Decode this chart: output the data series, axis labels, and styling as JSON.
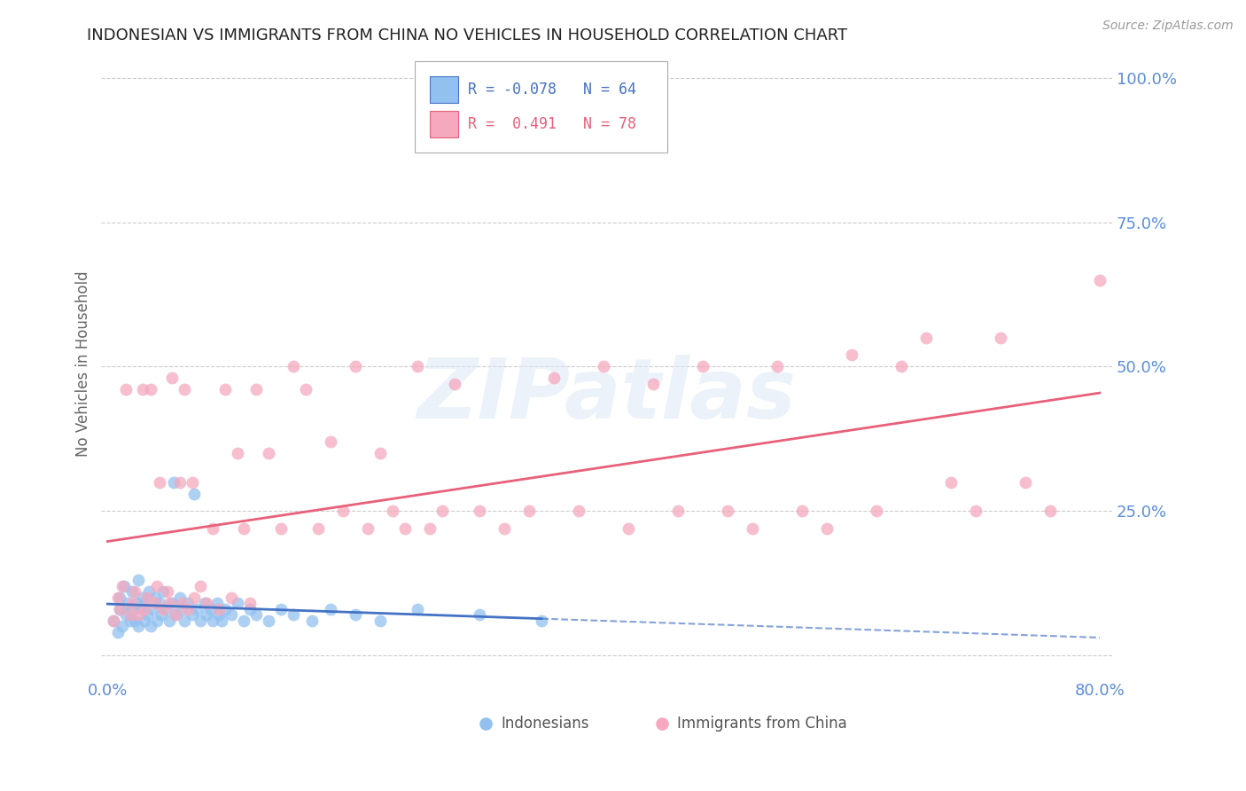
{
  "title": "INDONESIAN VS IMMIGRANTS FROM CHINA NO VEHICLES IN HOUSEHOLD CORRELATION CHART",
  "source": "Source: ZipAtlas.com",
  "ylabel": "No Vehicles in Household",
  "xlim": [
    0.0,
    0.8
  ],
  "ylim": [
    0.0,
    1.0
  ],
  "color_blue": "#92C1F0",
  "color_pink": "#F5A8BE",
  "line_blue": "#4472C4",
  "line_pink": "#E8607A",
  "R_blue": -0.078,
  "N_blue": 64,
  "R_pink": 0.491,
  "N_pink": 78,
  "watermark": "ZIPatlas",
  "background_color": "#FFFFFF",
  "title_fontsize": 13,
  "axis_color": "#5B8DD9",
  "indo_x": [
    0.005,
    0.008,
    0.01,
    0.01,
    0.012,
    0.013,
    0.015,
    0.016,
    0.018,
    0.02,
    0.02,
    0.022,
    0.023,
    0.025,
    0.025,
    0.027,
    0.028,
    0.03,
    0.03,
    0.032,
    0.033,
    0.035,
    0.036,
    0.038,
    0.04,
    0.042,
    0.043,
    0.045,
    0.047,
    0.05,
    0.052,
    0.053,
    0.055,
    0.058,
    0.06,
    0.062,
    0.065,
    0.068,
    0.07,
    0.072,
    0.075,
    0.078,
    0.08,
    0.083,
    0.085,
    0.088,
    0.09,
    0.092,
    0.095,
    0.1,
    0.105,
    0.11,
    0.115,
    0.12,
    0.13,
    0.14,
    0.15,
    0.165,
    0.18,
    0.2,
    0.22,
    0.25,
    0.3,
    0.35
  ],
  "indo_y": [
    0.06,
    0.04,
    0.08,
    0.1,
    0.05,
    0.12,
    0.07,
    0.09,
    0.06,
    0.08,
    0.11,
    0.06,
    0.09,
    0.05,
    0.13,
    0.08,
    0.1,
    0.06,
    0.09,
    0.07,
    0.11,
    0.05,
    0.08,
    0.1,
    0.06,
    0.09,
    0.07,
    0.11,
    0.08,
    0.06,
    0.09,
    0.3,
    0.07,
    0.1,
    0.08,
    0.06,
    0.09,
    0.07,
    0.28,
    0.08,
    0.06,
    0.09,
    0.07,
    0.08,
    0.06,
    0.09,
    0.07,
    0.06,
    0.08,
    0.07,
    0.09,
    0.06,
    0.08,
    0.07,
    0.06,
    0.08,
    0.07,
    0.06,
    0.08,
    0.07,
    0.06,
    0.08,
    0.07,
    0.06
  ],
  "china_x": [
    0.005,
    0.008,
    0.01,
    0.012,
    0.015,
    0.018,
    0.02,
    0.022,
    0.025,
    0.028,
    0.03,
    0.032,
    0.035,
    0.038,
    0.04,
    0.042,
    0.045,
    0.048,
    0.05,
    0.052,
    0.055,
    0.058,
    0.06,
    0.062,
    0.065,
    0.068,
    0.07,
    0.075,
    0.08,
    0.085,
    0.09,
    0.095,
    0.1,
    0.105,
    0.11,
    0.115,
    0.12,
    0.13,
    0.14,
    0.15,
    0.16,
    0.17,
    0.18,
    0.19,
    0.2,
    0.21,
    0.22,
    0.23,
    0.24,
    0.25,
    0.26,
    0.27,
    0.28,
    0.3,
    0.32,
    0.34,
    0.36,
    0.38,
    0.4,
    0.42,
    0.44,
    0.46,
    0.48,
    0.5,
    0.52,
    0.54,
    0.56,
    0.58,
    0.6,
    0.62,
    0.64,
    0.66,
    0.68,
    0.7,
    0.72,
    0.74,
    0.76,
    0.8
  ],
  "china_y": [
    0.06,
    0.1,
    0.08,
    0.12,
    0.46,
    0.07,
    0.09,
    0.11,
    0.07,
    0.46,
    0.08,
    0.1,
    0.46,
    0.09,
    0.12,
    0.3,
    0.08,
    0.11,
    0.09,
    0.48,
    0.07,
    0.3,
    0.09,
    0.46,
    0.08,
    0.3,
    0.1,
    0.12,
    0.09,
    0.22,
    0.08,
    0.46,
    0.1,
    0.35,
    0.22,
    0.09,
    0.46,
    0.35,
    0.22,
    0.5,
    0.46,
    0.22,
    0.37,
    0.25,
    0.5,
    0.22,
    0.35,
    0.25,
    0.22,
    0.5,
    0.22,
    0.25,
    0.47,
    0.25,
    0.22,
    0.25,
    0.48,
    0.25,
    0.5,
    0.22,
    0.47,
    0.25,
    0.5,
    0.25,
    0.22,
    0.5,
    0.25,
    0.22,
    0.52,
    0.25,
    0.5,
    0.55,
    0.3,
    0.25,
    0.55,
    0.3,
    0.25,
    0.65
  ]
}
